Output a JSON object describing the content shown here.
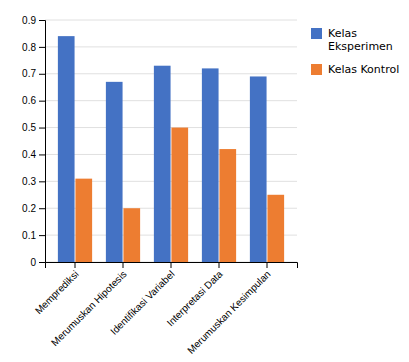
{
  "chart_data": {
    "type": "bar",
    "categories": [
      "Memprediksi",
      "Merumuskan Hipotesis",
      "Identifikasi Variabel",
      "Interpretasi Data",
      "Merumuskan Kesimpulan"
    ],
    "series": [
      {
        "name": "Kelas\nEksperimen",
        "color": "#4472C4",
        "values": [
          0.84,
          0.67,
          0.73,
          0.72,
          0.69
        ]
      },
      {
        "name": "Kelas Kontrol",
        "color": "#ED7D31",
        "values": [
          0.31,
          0.2,
          0.5,
          0.42,
          0.25
        ]
      }
    ],
    "ylim": [
      0,
      0.9
    ],
    "yticks": [
      0,
      0.1,
      0.2,
      0.3,
      0.4,
      0.5,
      0.6,
      0.7,
      0.8,
      0.9
    ],
    "grid": true,
    "legend": "right"
  }
}
